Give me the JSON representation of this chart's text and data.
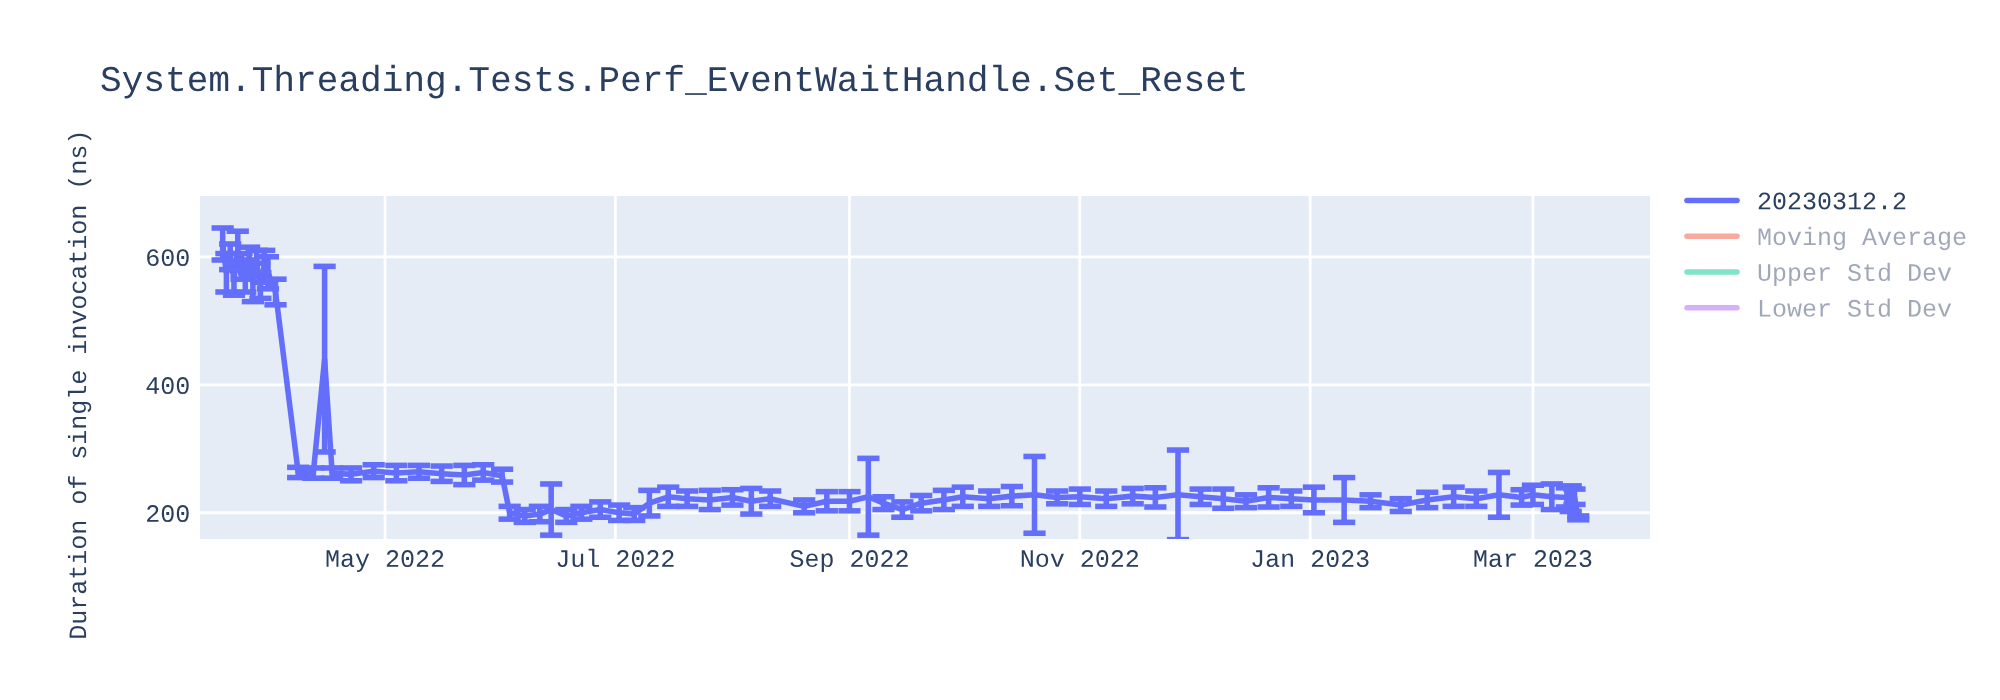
{
  "chart_data": {
    "type": "line",
    "title": "System.Threading.Tests.Perf_EventWaitHandle.Set_Reset",
    "ylabel": "Duration of single invocation (ns)",
    "xlim": [
      "2022-03-13",
      "2023-04-01"
    ],
    "xticks": [
      {
        "value": "2022-05-01",
        "label": "May 2022"
      },
      {
        "value": "2022-07-01",
        "label": "Jul 2022"
      },
      {
        "value": "2022-09-01",
        "label": "Sep 2022"
      },
      {
        "value": "2022-11-01",
        "label": "Nov 2022"
      },
      {
        "value": "2023-01-01",
        "label": "Jan 2023"
      },
      {
        "value": "2023-03-01",
        "label": "Mar 2023"
      }
    ],
    "ylim": [
      159,
      695
    ],
    "yticks": [
      200,
      400,
      600
    ],
    "grid": true,
    "legend": "right",
    "marker": "none",
    "line_style": "solid",
    "series": [
      {
        "name": "20230312.2",
        "color": "#636efa",
        "x": [
          "2022-03-19",
          "2022-03-20",
          "2022-03-21",
          "2022-03-22",
          "2022-03-23",
          "2022-03-24",
          "2022-03-25",
          "2022-03-26",
          "2022-03-27",
          "2022-03-28",
          "2022-03-29",
          "2022-03-30",
          "2022-03-31",
          "2022-04-02",
          "2022-04-08",
          "2022-04-12",
          "2022-04-15",
          "2022-04-17",
          "2022-04-22",
          "2022-04-28",
          "2022-05-04",
          "2022-05-10",
          "2022-05-16",
          "2022-05-22",
          "2022-05-27",
          "2022-06-01",
          "2022-06-03",
          "2022-06-07",
          "2022-06-11",
          "2022-06-14",
          "2022-06-18",
          "2022-06-22",
          "2022-06-27",
          "2022-07-02",
          "2022-07-06",
          "2022-07-10",
          "2022-07-15",
          "2022-07-20",
          "2022-07-26",
          "2022-08-01",
          "2022-08-06",
          "2022-08-11",
          "2022-08-20",
          "2022-08-26",
          "2022-09-01",
          "2022-09-06",
          "2022-09-10",
          "2022-09-15",
          "2022-09-20",
          "2022-09-26",
          "2022-10-01",
          "2022-10-08",
          "2022-10-14",
          "2022-10-20",
          "2022-10-26",
          "2022-11-01",
          "2022-11-08",
          "2022-11-15",
          "2022-11-21",
          "2022-11-27",
          "2022-12-03",
          "2022-12-09",
          "2022-12-15",
          "2022-12-21",
          "2022-12-27",
          "2023-01-02",
          "2023-01-10",
          "2023-01-17",
          "2023-01-25",
          "2023-02-01",
          "2023-02-08",
          "2023-02-14",
          "2023-02-20",
          "2023-02-26",
          "2023-03-01",
          "2023-03-06",
          "2023-03-10",
          "2023-03-11",
          "2023-03-12",
          "2023-03-13"
        ],
        "values": [
          620,
          575,
          600,
          565,
          610,
          585,
          570,
          595,
          560,
          590,
          555,
          585,
          575,
          545,
          263,
          262,
          440,
          262,
          260,
          265,
          262,
          264,
          261,
          259,
          263,
          258,
          200,
          195,
          198,
          205,
          195,
          200,
          205,
          200,
          198,
          215,
          225,
          222,
          220,
          224,
          218,
          222,
          210,
          218,
          218,
          225,
          215,
          205,
          215,
          220,
          225,
          222,
          226,
          228,
          224,
          225,
          222,
          226,
          224,
          228,
          225,
          222,
          218,
          224,
          222,
          220,
          220,
          218,
          212,
          220,
          225,
          222,
          228,
          224,
          228,
          225,
          224,
          222,
          225,
          192
        ],
        "errors": [
          25,
          30,
          20,
          25,
          30,
          20,
          25,
          20,
          30,
          20,
          20,
          25,
          25,
          20,
          8,
          8,
          145,
          8,
          10,
          10,
          12,
          10,
          12,
          15,
          12,
          10,
          10,
          10,
          12,
          40,
          10,
          10,
          12,
          12,
          10,
          20,
          15,
          12,
          15,
          12,
          20,
          12,
          10,
          15,
          15,
          60,
          10,
          12,
          12,
          15,
          15,
          12,
          15,
          60,
          10,
          12,
          12,
          12,
          15,
          70,
          12,
          15,
          10,
          15,
          12,
          20,
          35,
          10,
          10,
          12,
          15,
          12,
          35,
          12,
          15,
          20,
          15,
          20,
          12,
          3
        ]
      },
      {
        "name": "Moving Average",
        "color": "#ef553b",
        "values": [
          null
        ]
      },
      {
        "name": "Upper Std Dev",
        "color": "#00cc96",
        "values": [
          null
        ]
      },
      {
        "name": "Lower Std Dev",
        "color": "#ab63fa",
        "values": [
          null
        ]
      }
    ]
  }
}
